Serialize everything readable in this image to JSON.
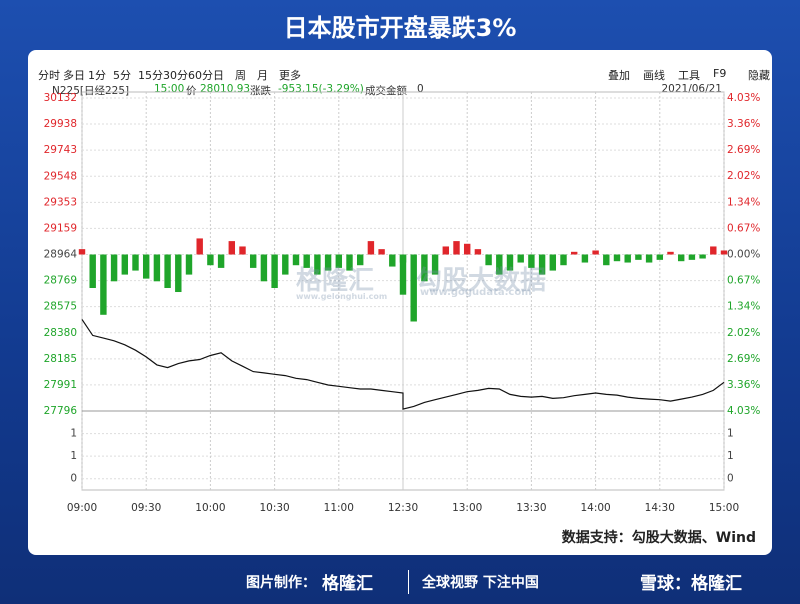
{
  "title": "日本股市开盘暴跌3%",
  "toolbar": {
    "left": [
      "分时",
      "多日",
      "1分",
      "5分",
      "15分",
      "30分",
      "60分",
      "日",
      "周",
      "月",
      "更多"
    ],
    "right": [
      "叠加",
      "画线",
      "工具",
      "F9",
      "隐藏"
    ]
  },
  "info": {
    "symbol": "N225[日经225]",
    "time": "15:00",
    "price_label": "价",
    "price": "28010.93",
    "change_label": "涨跌",
    "change": "-953.15(-3.29%)",
    "amount_label": "成交金额",
    "amount": "0",
    "date": "2021/06/21"
  },
  "watermarks": {
    "brand1": "格隆汇",
    "url1": "www.gelonghui.com",
    "brand2": "勾股大数据",
    "url2": "www.gogudata.com"
  },
  "footer": {
    "source": "数据支持：勾股大数据、Wind",
    "credit_label": "图片制作：",
    "brand": "格隆汇",
    "slogan": "全球视野 下注中国",
    "xueqiu": "雪球：格隆汇"
  },
  "chart_data": {
    "type": "line",
    "color": "#111111",
    "up_color": "#e0262b",
    "down_color": "#1fa52a",
    "grid": true,
    "x": [
      "09:00",
      "09:05",
      "09:10",
      "09:15",
      "09:20",
      "09:25",
      "09:30",
      "09:35",
      "09:40",
      "09:45",
      "09:50",
      "09:55",
      "10:00",
      "10:05",
      "10:10",
      "10:15",
      "10:20",
      "10:25",
      "10:30",
      "10:35",
      "10:40",
      "10:45",
      "10:50",
      "10:55",
      "11:00",
      "11:05",
      "11:10",
      "11:15",
      "11:20",
      "11:25",
      "11:30",
      "12:30",
      "12:35",
      "12:40",
      "12:45",
      "12:50",
      "12:55",
      "13:00",
      "13:05",
      "13:10",
      "13:15",
      "13:20",
      "13:25",
      "13:30",
      "13:35",
      "13:40",
      "13:45",
      "13:50",
      "13:55",
      "14:00",
      "14:05",
      "14:10",
      "14:15",
      "14:20",
      "14:25",
      "14:30",
      "14:35",
      "14:40",
      "14:45",
      "14:50",
      "14:55",
      "15:00"
    ],
    "values": [
      28480,
      28360,
      28340,
      28320,
      28290,
      28250,
      28200,
      28140,
      28120,
      28150,
      28170,
      28180,
      28210,
      28230,
      28170,
      28130,
      28090,
      28080,
      28070,
      28060,
      28040,
      28030,
      28010,
      27990,
      27980,
      27970,
      27960,
      27960,
      27950,
      27940,
      27930,
      27810,
      27830,
      27860,
      27880,
      27900,
      27920,
      27940,
      27950,
      27965,
      27960,
      27920,
      27905,
      27900,
      27905,
      27890,
      27895,
      27910,
      27920,
      27930,
      27920,
      27915,
      27900,
      27890,
      27885,
      27880,
      27870,
      27885,
      27900,
      27920,
      27950,
      28010
    ],
    "bars": {
      "values": [
        40,
        -250,
        -450,
        -200,
        -150,
        -120,
        -180,
        -200,
        -250,
        -280,
        -150,
        120,
        -80,
        -100,
        100,
        60,
        -100,
        -200,
        -250,
        -150,
        -80,
        -100,
        -150,
        -120,
        -100,
        -120,
        -80,
        100,
        40,
        -90,
        -60,
        -300,
        -500,
        -200,
        -150,
        60,
        100,
        80,
        40,
        -80,
        -150,
        -120,
        -60,
        -100,
        -150,
        -120,
        -80,
        20,
        -60,
        30,
        -80,
        -50,
        -60,
        -40,
        -60,
        -40,
        20,
        -50,
        -40,
        -30,
        60,
        30
      ]
    },
    "xticks": [
      "09:00",
      "09:30",
      "10:00",
      "10:30",
      "11:00",
      "12:30",
      "13:00",
      "13:30",
      "14:00",
      "14:30",
      "15:00"
    ],
    "ylim": [
      27796,
      30132
    ],
    "yticks": [
      30132,
      29938,
      29743,
      29548,
      29353,
      29159,
      28964,
      28769,
      28575,
      28380,
      28185,
      27991,
      27796
    ],
    "y2lim": [
      -4.03,
      4.03
    ],
    "y2ticks": [
      {
        "value": 4.03,
        "label": "4.03%"
      },
      {
        "value": 3.36,
        "label": "3.36%"
      },
      {
        "value": 2.69,
        "label": "2.69%"
      },
      {
        "value": 2.02,
        "label": "2.02%"
      },
      {
        "value": 1.34,
        "label": "1.34%"
      },
      {
        "value": 0.67,
        "label": "0.67%"
      },
      {
        "value": 0,
        "label": "0.00%"
      },
      {
        "value": -0.67,
        "label": "0.67%"
      },
      {
        "value": -1.34,
        "label": "1.34%"
      },
      {
        "value": -2.02,
        "label": "2.02%"
      },
      {
        "value": -2.69,
        "label": "2.69%"
      },
      {
        "value": -3.36,
        "label": "3.36%"
      },
      {
        "value": -4.03,
        "label": "4.03%"
      }
    ],
    "volume_yticks": [
      1,
      1,
      0
    ]
  }
}
